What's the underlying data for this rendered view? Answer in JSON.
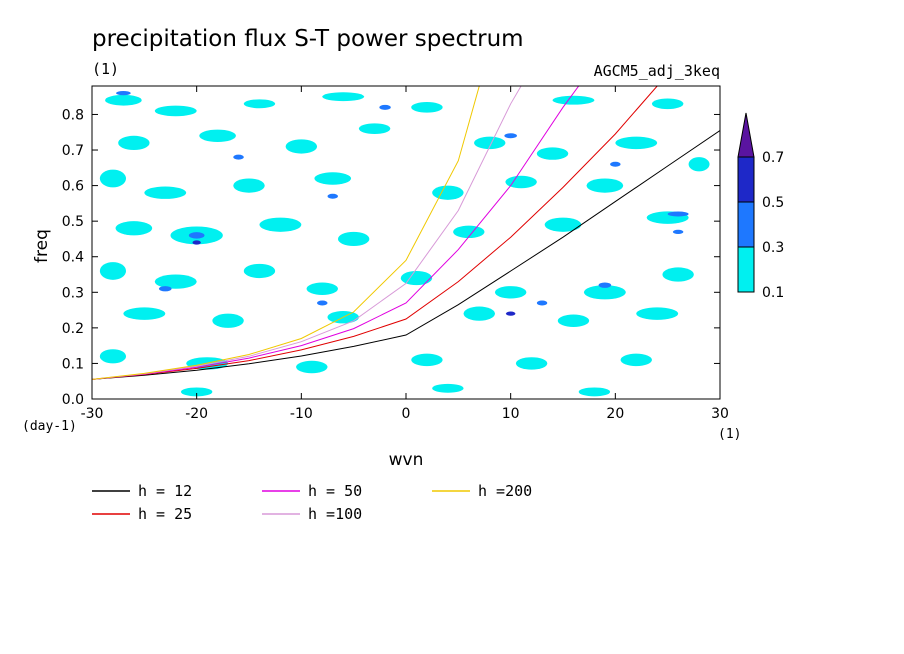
{
  "chart_data": {
    "type": "heatmap",
    "title": "precipitation flux S-T power spectrum",
    "subtitle_left": "(1)",
    "subtitle_right": "AGCM5_adj_3keq",
    "xlabel": "wvn",
    "ylabel": "freq",
    "x_unit": "(1)",
    "y_unit": "(day-1)",
    "xlim": [
      -30,
      30
    ],
    "ylim": [
      0,
      0.88
    ],
    "x_ticks": [
      -30,
      -20,
      -10,
      0,
      10,
      20,
      30
    ],
    "x_tick_labels": [
      "-30",
      "-20",
      "-10",
      "0",
      "10",
      "20",
      "30"
    ],
    "y_ticks": [
      0,
      0.1,
      0.2,
      0.3,
      0.4,
      0.5,
      0.6,
      0.7,
      0.8
    ],
    "y_tick_labels": [
      "0.0",
      "0.1",
      "0.2",
      "0.3",
      "0.4",
      "0.5",
      "0.6",
      "0.7",
      "0.8"
    ],
    "colorbar": {
      "levels": [
        0.1,
        0.3,
        0.5,
        0.7
      ],
      "labels": [
        "0.1",
        "0.3",
        "0.5",
        "0.7"
      ],
      "colors": [
        "#00f0f0",
        "#1e78ff",
        "#1e28c8",
        "#5a14a0"
      ],
      "extend": "max"
    },
    "field_description_only": "noisy patches of low power (0.1-0.3) across the domain",
    "field_patches": [
      {
        "x": -27,
        "y": 0.84,
        "w": 3.5,
        "h": 0.03,
        "level": 0
      },
      {
        "x": -22,
        "y": 0.81,
        "w": 4,
        "h": 0.03,
        "level": 0
      },
      {
        "x": -14,
        "y": 0.83,
        "w": 3,
        "h": 0.025,
        "level": 0
      },
      {
        "x": -6,
        "y": 0.85,
        "w": 4,
        "h": 0.025,
        "level": 0
      },
      {
        "x": 2,
        "y": 0.82,
        "w": 3,
        "h": 0.03,
        "level": 0
      },
      {
        "x": 16,
        "y": 0.84,
        "w": 4,
        "h": 0.025,
        "level": 0
      },
      {
        "x": 25,
        "y": 0.83,
        "w": 3,
        "h": 0.03,
        "level": 0
      },
      {
        "x": -26,
        "y": 0.72,
        "w": 3,
        "h": 0.04,
        "level": 0
      },
      {
        "x": -18,
        "y": 0.74,
        "w": 3.5,
        "h": 0.035,
        "level": 0
      },
      {
        "x": -10,
        "y": 0.71,
        "w": 3,
        "h": 0.04,
        "level": 0
      },
      {
        "x": -3,
        "y": 0.76,
        "w": 3,
        "h": 0.03,
        "level": 0
      },
      {
        "x": 8,
        "y": 0.72,
        "w": 3,
        "h": 0.035,
        "level": 0
      },
      {
        "x": 14,
        "y": 0.69,
        "w": 3,
        "h": 0.035,
        "level": 0
      },
      {
        "x": 22,
        "y": 0.72,
        "w": 4,
        "h": 0.035,
        "level": 0
      },
      {
        "x": 28,
        "y": 0.66,
        "w": 2,
        "h": 0.04,
        "level": 0
      },
      {
        "x": -28,
        "y": 0.62,
        "w": 2.5,
        "h": 0.05,
        "level": 0
      },
      {
        "x": -23,
        "y": 0.58,
        "w": 4,
        "h": 0.035,
        "level": 0
      },
      {
        "x": -15,
        "y": 0.6,
        "w": 3,
        "h": 0.04,
        "level": 0
      },
      {
        "x": -7,
        "y": 0.62,
        "w": 3.5,
        "h": 0.035,
        "level": 0
      },
      {
        "x": 4,
        "y": 0.58,
        "w": 3,
        "h": 0.04,
        "level": 0
      },
      {
        "x": 11,
        "y": 0.61,
        "w": 3,
        "h": 0.035,
        "level": 0
      },
      {
        "x": 19,
        "y": 0.6,
        "w": 3.5,
        "h": 0.04,
        "level": 0
      },
      {
        "x": -26,
        "y": 0.48,
        "w": 3.5,
        "h": 0.04,
        "level": 0
      },
      {
        "x": -20,
        "y": 0.46,
        "w": 5,
        "h": 0.05,
        "level": 0
      },
      {
        "x": -12,
        "y": 0.49,
        "w": 4,
        "h": 0.04,
        "level": 0
      },
      {
        "x": -5,
        "y": 0.45,
        "w": 3,
        "h": 0.04,
        "level": 0
      },
      {
        "x": 6,
        "y": 0.47,
        "w": 3,
        "h": 0.035,
        "level": 0
      },
      {
        "x": 15,
        "y": 0.49,
        "w": 3.5,
        "h": 0.04,
        "level": 0
      },
      {
        "x": 25,
        "y": 0.51,
        "w": 4,
        "h": 0.035,
        "level": 0
      },
      {
        "x": -28,
        "y": 0.36,
        "w": 2.5,
        "h": 0.05,
        "level": 0
      },
      {
        "x": -22,
        "y": 0.33,
        "w": 4,
        "h": 0.04,
        "level": 0
      },
      {
        "x": -14,
        "y": 0.36,
        "w": 3,
        "h": 0.04,
        "level": 0
      },
      {
        "x": -8,
        "y": 0.31,
        "w": 3,
        "h": 0.035,
        "level": 0
      },
      {
        "x": 1,
        "y": 0.34,
        "w": 3,
        "h": 0.04,
        "level": 0
      },
      {
        "x": 10,
        "y": 0.3,
        "w": 3,
        "h": 0.035,
        "level": 0
      },
      {
        "x": 19,
        "y": 0.3,
        "w": 4,
        "h": 0.04,
        "level": 0
      },
      {
        "x": 26,
        "y": 0.35,
        "w": 3,
        "h": 0.04,
        "level": 0
      },
      {
        "x": -25,
        "y": 0.24,
        "w": 4,
        "h": 0.035,
        "level": 0
      },
      {
        "x": -17,
        "y": 0.22,
        "w": 3,
        "h": 0.04,
        "level": 0
      },
      {
        "x": -6,
        "y": 0.23,
        "w": 3,
        "h": 0.035,
        "level": 0
      },
      {
        "x": 7,
        "y": 0.24,
        "w": 3,
        "h": 0.04,
        "level": 0
      },
      {
        "x": 16,
        "y": 0.22,
        "w": 3,
        "h": 0.035,
        "level": 0
      },
      {
        "x": 24,
        "y": 0.24,
        "w": 4,
        "h": 0.035,
        "level": 0
      },
      {
        "x": -28,
        "y": 0.12,
        "w": 2.5,
        "h": 0.04,
        "level": 0
      },
      {
        "x": -19,
        "y": 0.1,
        "w": 4,
        "h": 0.035,
        "level": 0
      },
      {
        "x": -9,
        "y": 0.09,
        "w": 3,
        "h": 0.035,
        "level": 0
      },
      {
        "x": 2,
        "y": 0.11,
        "w": 3,
        "h": 0.035,
        "level": 0
      },
      {
        "x": 12,
        "y": 0.1,
        "w": 3,
        "h": 0.035,
        "level": 0
      },
      {
        "x": 22,
        "y": 0.11,
        "w": 3,
        "h": 0.035,
        "level": 0
      },
      {
        "x": -20,
        "y": 0.02,
        "w": 3,
        "h": 0.025,
        "level": 0
      },
      {
        "x": 4,
        "y": 0.03,
        "w": 3,
        "h": 0.025,
        "level": 0
      },
      {
        "x": 18,
        "y": 0.02,
        "w": 3,
        "h": 0.025,
        "level": 0
      },
      {
        "x": -27,
        "y": 0.86,
        "w": 1.4,
        "h": 0.012,
        "level": 1
      },
      {
        "x": -20,
        "y": 0.46,
        "w": 1.5,
        "h": 0.018,
        "level": 1
      },
      {
        "x": -20,
        "y": 0.44,
        "w": 0.8,
        "h": 0.012,
        "level": 2
      },
      {
        "x": -23,
        "y": 0.31,
        "w": 1.2,
        "h": 0.015,
        "level": 1
      },
      {
        "x": -7,
        "y": 0.57,
        "w": 1.0,
        "h": 0.014,
        "level": 1
      },
      {
        "x": -8,
        "y": 0.27,
        "w": 1.0,
        "h": 0.014,
        "level": 1
      },
      {
        "x": 10,
        "y": 0.74,
        "w": 1.2,
        "h": 0.014,
        "level": 1
      },
      {
        "x": 13,
        "y": 0.27,
        "w": 1.0,
        "h": 0.014,
        "level": 1
      },
      {
        "x": 10,
        "y": 0.24,
        "w": 0.9,
        "h": 0.012,
        "level": 2
      },
      {
        "x": 19,
        "y": 0.32,
        "w": 1.2,
        "h": 0.015,
        "level": 1
      },
      {
        "x": 26,
        "y": 0.52,
        "w": 2.0,
        "h": 0.014,
        "level": 1
      },
      {
        "x": 26,
        "y": 0.47,
        "w": 1.0,
        "h": 0.012,
        "level": 1
      },
      {
        "x": -2,
        "y": 0.82,
        "w": 1.1,
        "h": 0.014,
        "level": 1
      },
      {
        "x": 20,
        "y": 0.66,
        "w": 1.0,
        "h": 0.014,
        "level": 1
      },
      {
        "x": -16,
        "y": 0.68,
        "w": 1.0,
        "h": 0.014,
        "level": 1
      }
    ],
    "dispersion_curves_description_only": "Kelvin wave dispersion curves for equivalent depths h",
    "series": [
      {
        "name": "h = 12",
        "h": 12,
        "color": "#000000",
        "x": [
          -30,
          -25,
          -20,
          -15,
          -10,
          -5,
          0,
          5,
          10,
          15,
          20,
          25,
          30
        ],
        "y": [
          0.055,
          0.067,
          0.081,
          0.099,
          0.121,
          0.148,
          0.18,
          0.265,
          0.36,
          0.455,
          0.555,
          0.655,
          0.755
        ]
      },
      {
        "name": "h = 25",
        "h": 25,
        "color": "#e00000",
        "x": [
          -30,
          -25,
          -20,
          -15,
          -10,
          -5,
          0,
          5,
          10,
          15,
          20,
          24
        ],
        "y": [
          0.055,
          0.069,
          0.086,
          0.108,
          0.138,
          0.176,
          0.225,
          0.33,
          0.455,
          0.595,
          0.745,
          0.88
        ]
      },
      {
        "name": "h = 50",
        "h": 50,
        "color": "#e000e0",
        "x": [
          -30,
          -25,
          -20,
          -15,
          -10,
          -5,
          0,
          5,
          10,
          15,
          16.5
        ],
        "y": [
          0.055,
          0.07,
          0.089,
          0.115,
          0.15,
          0.198,
          0.27,
          0.42,
          0.6,
          0.82,
          0.88
        ]
      },
      {
        "name": "h =100",
        "h": 100,
        "color": "#d89ad8",
        "x": [
          -30,
          -25,
          -20,
          -15,
          -10,
          -5,
          0,
          5,
          10,
          11
        ],
        "y": [
          0.055,
          0.071,
          0.092,
          0.12,
          0.161,
          0.22,
          0.325,
          0.53,
          0.83,
          0.88
        ]
      },
      {
        "name": "h =200",
        "h": 200,
        "color": "#f0c800",
        "x": [
          -30,
          -25,
          -20,
          -15,
          -10,
          -5,
          0,
          5,
          7
        ],
        "y": [
          0.055,
          0.072,
          0.095,
          0.125,
          0.17,
          0.245,
          0.39,
          0.67,
          0.88
        ]
      }
    ],
    "legend": {
      "placement": "bottom"
    }
  }
}
